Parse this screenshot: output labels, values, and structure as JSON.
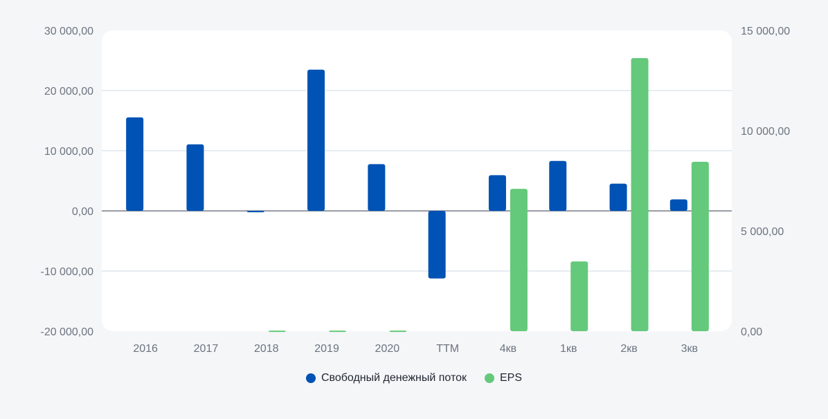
{
  "chart_data": {
    "type": "bar",
    "title": "",
    "categories": [
      "2016",
      "2017",
      "2018",
      "2019",
      "2020",
      "TTM",
      "4кв",
      "1кв",
      "2кв",
      "3кв"
    ],
    "series": [
      {
        "name": "Свободный денежный поток",
        "axis": "left",
        "color": "#0052b4",
        "values": [
          15550,
          11070,
          -190,
          23480,
          7780,
          -11230,
          5940,
          8310,
          4520,
          1910
        ]
      },
      {
        "name": "EPS",
        "axis": "right",
        "color": "#64c97a",
        "values": [
          null,
          null,
          30,
          30,
          30,
          null,
          7100,
          3480,
          13620,
          8450
        ]
      }
    ],
    "left_axis": {
      "range": [
        -20000,
        30000
      ],
      "ticks": [
        -20000,
        -10000,
        0,
        10000,
        20000,
        30000
      ],
      "tick_labels": [
        "-20 000,00",
        "-10 000,00",
        "0,00",
        "10 000,00",
        "20 000,00",
        "30 000,00"
      ]
    },
    "right_axis": {
      "range": [
        0,
        15000
      ],
      "ticks": [
        0,
        5000,
        10000,
        15000
      ],
      "tick_labels": [
        "0,00",
        "5 000,00",
        "10 000,00",
        "15 000,00"
      ]
    },
    "grid": true,
    "legend_position": "bottom-center",
    "xlabel": "",
    "ylabel": ""
  }
}
